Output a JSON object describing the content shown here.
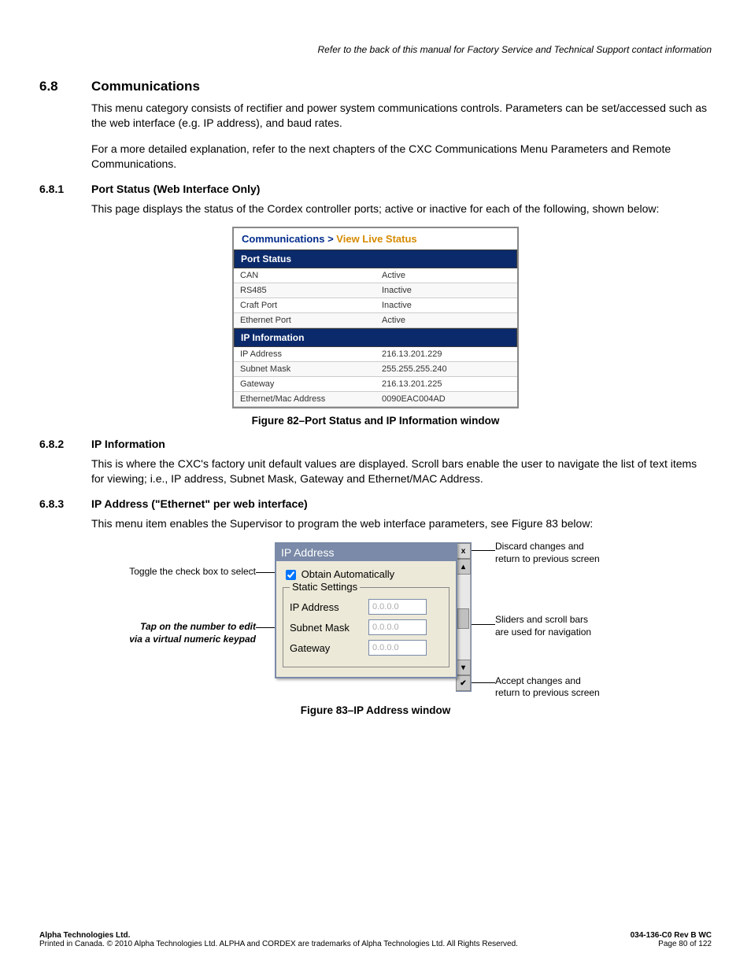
{
  "header_note": "Refer to the back of this manual for Factory Service and Technical Support contact information",
  "sec68": {
    "num": "6.8",
    "title": "Communications"
  },
  "p68a": "This menu category consists of rectifier and power system communications controls. Parameters can be set/accessed such as the web interface (e.g. IP address), and baud rates.",
  "p68b": "For a more detailed explanation, refer to the next chapters of the CXC Communications Menu Parameters and Remote Communications.",
  "sec681": {
    "num": "6.8.1",
    "title": "Port Status (Web Interface Only)"
  },
  "p681": "This page displays the status of the Cordex controller ports; active or inactive for each of the following, shown below:",
  "fig82": {
    "title_part1": "Communications",
    "title_gt": " > ",
    "title_part2": "View Live Status",
    "port_status_header": "Port Status",
    "port_rows": [
      {
        "l": "CAN",
        "r": "Active"
      },
      {
        "l": "RS485",
        "r": "Inactive"
      },
      {
        "l": "Craft Port",
        "r": "Inactive"
      },
      {
        "l": "Ethernet Port",
        "r": "Active"
      }
    ],
    "ip_header": "IP Information",
    "ip_rows": [
      {
        "l": "IP Address",
        "r": "216.13.201.229"
      },
      {
        "l": "Subnet Mask",
        "r": "255.255.255.240"
      },
      {
        "l": "Gateway",
        "r": "216.13.201.225"
      },
      {
        "l": "Ethernet/Mac Address",
        "r": "0090EAC004AD"
      }
    ],
    "caption": "Figure 82–Port Status and IP Information window",
    "colors": {
      "header_bg": "#0b2a6b",
      "header_text": "#ffffff",
      "title_blue": "#002b8a",
      "title_orange": "#d68a00",
      "border": "#888888",
      "row_text": "#333333"
    }
  },
  "sec682": {
    "num": "6.8.2",
    "title": "IP Information"
  },
  "p682": "This is where the CXC's factory unit default values are displayed. Scroll bars enable the user to navigate the list of text items for viewing; i.e., IP address, Subnet Mask, Gateway and Ethernet/MAC Address.",
  "sec683": {
    "num": "6.8.3",
    "title": "IP Address (\"Ethernet\" per web interface)"
  },
  "p683": "This menu item enables the Supervisor to program the web interface parameters, see Figure 83 below:",
  "fig83": {
    "left_note1": "Toggle the check box to select",
    "left_note2a": "Tap on the number to edit",
    "left_note2b": "via a virtual numeric keypad",
    "dialog_title": "IP Address",
    "close_x": "x",
    "obtain_label": "Obtain Automatically",
    "fieldset_legend": "Static Settings",
    "fields": [
      {
        "label": "IP Address",
        "value": "0.0.0.0"
      },
      {
        "label": "Subnet Mask",
        "value": "0.0.0.0"
      },
      {
        "label": "Gateway",
        "value": "0.0.0.0"
      }
    ],
    "scroll_up": "▴",
    "scroll_down": "▾",
    "scroll_accept": "✔",
    "right_note1a": "Discard changes and",
    "right_note1b": "return to previous screen",
    "right_note2a": "Sliders and scroll bars",
    "right_note2b": "are used for navigation",
    "right_note3a": "Accept changes and",
    "right_note3b": "return to previous screen",
    "caption": "Figure 83–IP Address window",
    "colors": {
      "dialog_border": "#7a8aa8",
      "dialog_bg": "#ece9d8",
      "titlebar_bg": "#7a8aa8",
      "titlebar_text": "#ffffff",
      "input_placeholder": "#aaaaaa",
      "scroll_btn_bg": "#c8c8c8"
    }
  },
  "footer": {
    "company": "Alpha Technologies Ltd.",
    "legal": "Printed in Canada.  © 2010 Alpha Technologies Ltd.  ALPHA and CORDEX are trademarks of Alpha Technologies Ltd.  All Rights Reserved.",
    "doc": "034-136-C0  Rev B  WC",
    "page": "Page 80 of 122"
  }
}
